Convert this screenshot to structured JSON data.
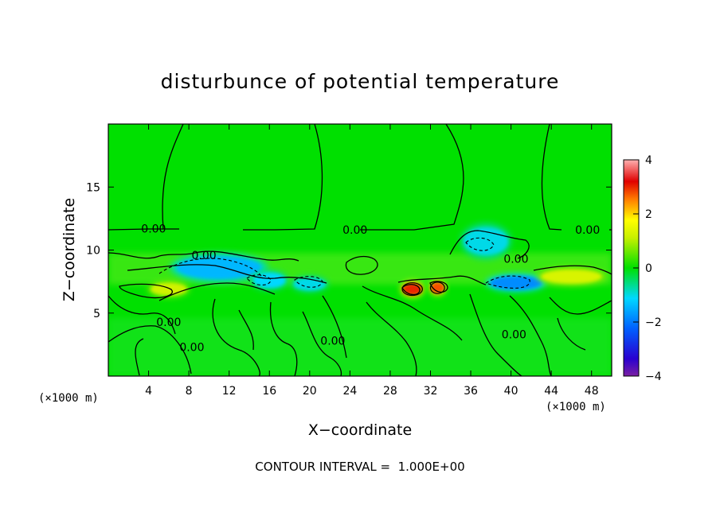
{
  "chart_data": {
    "type": "heatmap",
    "title": "disturbunce of potential temperature",
    "xlabel": "X−coordinate",
    "ylabel": "Z−coordinate",
    "x_unit_left": "(×1000 m)",
    "x_unit_right": "(×1000 m)",
    "xlim": [
      0,
      50
    ],
    "ylim": [
      0,
      20
    ],
    "x_ticks": [
      {
        "value": 4,
        "label": "4"
      },
      {
        "value": 8,
        "label": "8"
      },
      {
        "value": 12,
        "label": "12"
      },
      {
        "value": 16,
        "label": "16"
      },
      {
        "value": 20,
        "label": "20"
      },
      {
        "value": 24,
        "label": "24"
      },
      {
        "value": 28,
        "label": "28"
      },
      {
        "value": 32,
        "label": "32"
      },
      {
        "value": 36,
        "label": "36"
      },
      {
        "value": 40,
        "label": "40"
      },
      {
        "value": 44,
        "label": "44"
      },
      {
        "value": 48,
        "label": "48"
      }
    ],
    "y_ticks": [
      {
        "value": 5,
        "label": "5"
      },
      {
        "value": 10,
        "label": "10"
      },
      {
        "value": 15,
        "label": "15"
      }
    ],
    "colorbar": {
      "min": -4,
      "max": 4,
      "ticks": [
        {
          "value": 4,
          "label": "4"
        },
        {
          "value": 2,
          "label": "2"
        },
        {
          "value": 0,
          "label": "0"
        },
        {
          "value": -2,
          "label": "−2"
        },
        {
          "value": -4,
          "label": "−4"
        }
      ],
      "colors": [
        "#7b1fa2",
        "#0000e0",
        "#00c8ff",
        "#00e000",
        "#ffff00",
        "#e00000",
        "#ffb0b0"
      ]
    },
    "regions": [
      {
        "kind": "cool",
        "x": 11,
        "z": 8.6,
        "rx": 4.2,
        "rz": 0.9,
        "value": -1.4
      },
      {
        "kind": "cool",
        "x": 16,
        "z": 7.6,
        "rx": 1.6,
        "rz": 0.6,
        "value": -1.1
      },
      {
        "kind": "cool",
        "x": 20,
        "z": 7.3,
        "rx": 1.6,
        "rz": 0.5,
        "value": -1.0
      },
      {
        "kind": "cool",
        "x": 37.5,
        "z": 10.7,
        "rx": 2.2,
        "rz": 1.1,
        "value": -1.0
      },
      {
        "kind": "cool",
        "x": 40.5,
        "z": 7.4,
        "rx": 2.6,
        "rz": 0.55,
        "value": -1.8
      },
      {
        "kind": "warm",
        "x": 6,
        "z": 6.9,
        "rx": 1.8,
        "rz": 0.5,
        "value": 1.2
      },
      {
        "kind": "warm",
        "x": 46,
        "z": 7.9,
        "rx": 3.0,
        "rz": 0.55,
        "value": 1.3
      },
      {
        "kind": "hot",
        "x": 30.2,
        "z": 6.9,
        "rx": 1.0,
        "rz": 0.5,
        "value": 3.0
      },
      {
        "kind": "hot",
        "x": 32.7,
        "z": 7.0,
        "rx": 0.7,
        "rz": 0.45,
        "value": 2.8
      }
    ],
    "contour_labels": [
      {
        "text": "0.00",
        "x": 4.5,
        "z": 11.7
      },
      {
        "text": "0.00",
        "x": 24.5,
        "z": 11.6
      },
      {
        "text": "0.00",
        "x": 47.6,
        "z": 11.6
      },
      {
        "text": "0.00",
        "x": 9.5,
        "z": 9.6
      },
      {
        "text": "0.00",
        "x": 40.5,
        "z": 9.3
      },
      {
        "text": "0.00",
        "x": 6.0,
        "z": 4.3
      },
      {
        "text": "0.00",
        "x": 8.3,
        "z": 2.3
      },
      {
        "text": "0.00",
        "x": 22.3,
        "z": 2.8
      },
      {
        "text": "0.00",
        "x": 40.3,
        "z": 3.3
      }
    ]
  },
  "footer": "CONTOUR INTERVAL =  1.000E+00"
}
